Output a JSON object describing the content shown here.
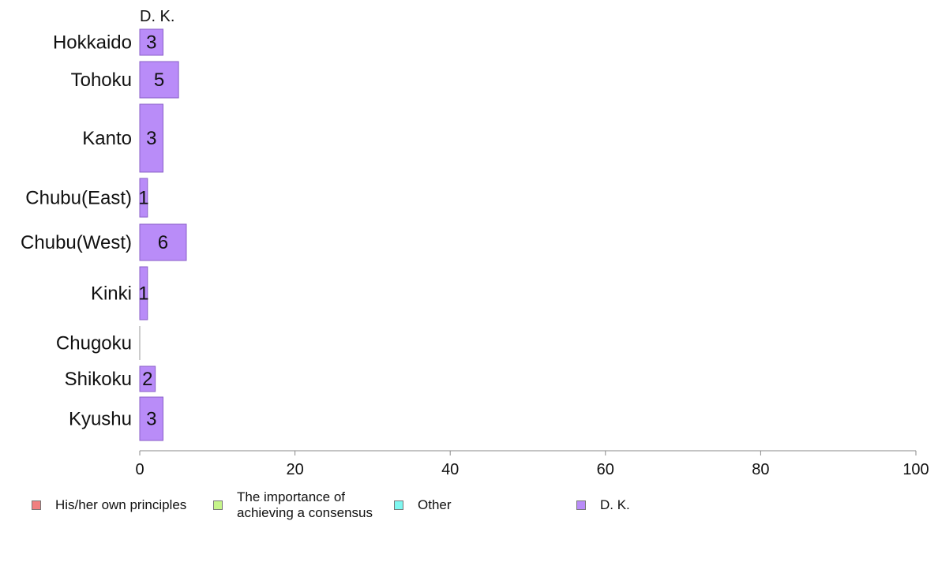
{
  "chart_data": {
    "type": "bar",
    "orientation": "horizontal",
    "stacked": true,
    "series_header": "D. K.",
    "categories": [
      "Hokkaido",
      "Tohoku",
      "Kanto",
      "Chubu(East)",
      "Chubu(West)",
      "Kinki",
      "Chugoku",
      "Shikoku",
      "Kyushu"
    ],
    "series": [
      {
        "name": "His/her own principles",
        "color": "#f08080",
        "values": [
          0,
          0,
          0,
          0,
          0,
          0,
          0,
          0,
          0
        ]
      },
      {
        "name": "The importance of\nachieving a consensus",
        "color": "#c6f58a",
        "values": [
          0,
          0,
          0,
          0,
          0,
          0,
          0,
          0,
          0
        ]
      },
      {
        "name": "Other",
        "color": "#7ef7f0",
        "values": [
          0,
          0,
          0,
          0,
          0,
          0,
          0,
          0,
          0
        ]
      },
      {
        "name": "D. K.",
        "color": "#b98cf8",
        "values": [
          3,
          5,
          3,
          1,
          6,
          1,
          0,
          2,
          3
        ],
        "labels": [
          "3",
          "5",
          "3",
          "1",
          "6",
          "1",
          "",
          "2",
          "3"
        ]
      }
    ],
    "xlim": [
      0,
      100
    ],
    "xticks": [
      0,
      20,
      40,
      60,
      80,
      100
    ],
    "grid": false,
    "legend_position": "bottom"
  }
}
